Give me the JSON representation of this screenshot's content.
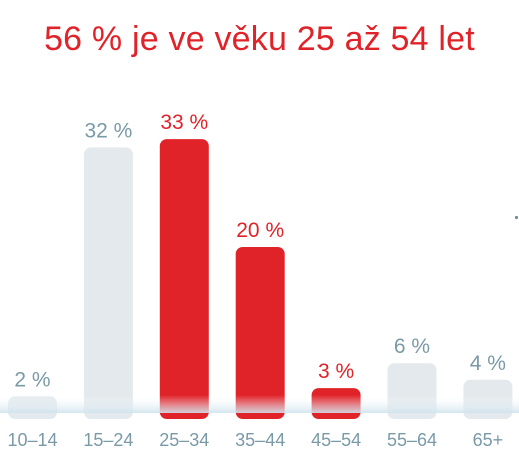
{
  "title": "56 % je ve věku 25 až 54 let",
  "colors": {
    "highlight": "#e02329",
    "muted_bar": "#e3e9ec",
    "muted_text": "#7a9aa8"
  },
  "chart_data": {
    "type": "bar",
    "title": "56 % je ve věku 25 až 54 let",
    "categories": [
      "10–14",
      "15–24",
      "25–34",
      "35–44",
      "45–54",
      "55–64",
      "65+"
    ],
    "values": [
      2,
      32,
      33,
      20,
      3,
      6,
      4
    ],
    "value_labels": [
      "2 %",
      "32 %",
      "33 %",
      "20 %",
      "3 %",
      "6 %",
      "4 %"
    ],
    "highlighted": [
      false,
      false,
      true,
      true,
      true,
      false,
      false
    ],
    "ylim": [
      0,
      35
    ],
    "grid": false,
    "xlabel": "",
    "ylabel": ""
  }
}
